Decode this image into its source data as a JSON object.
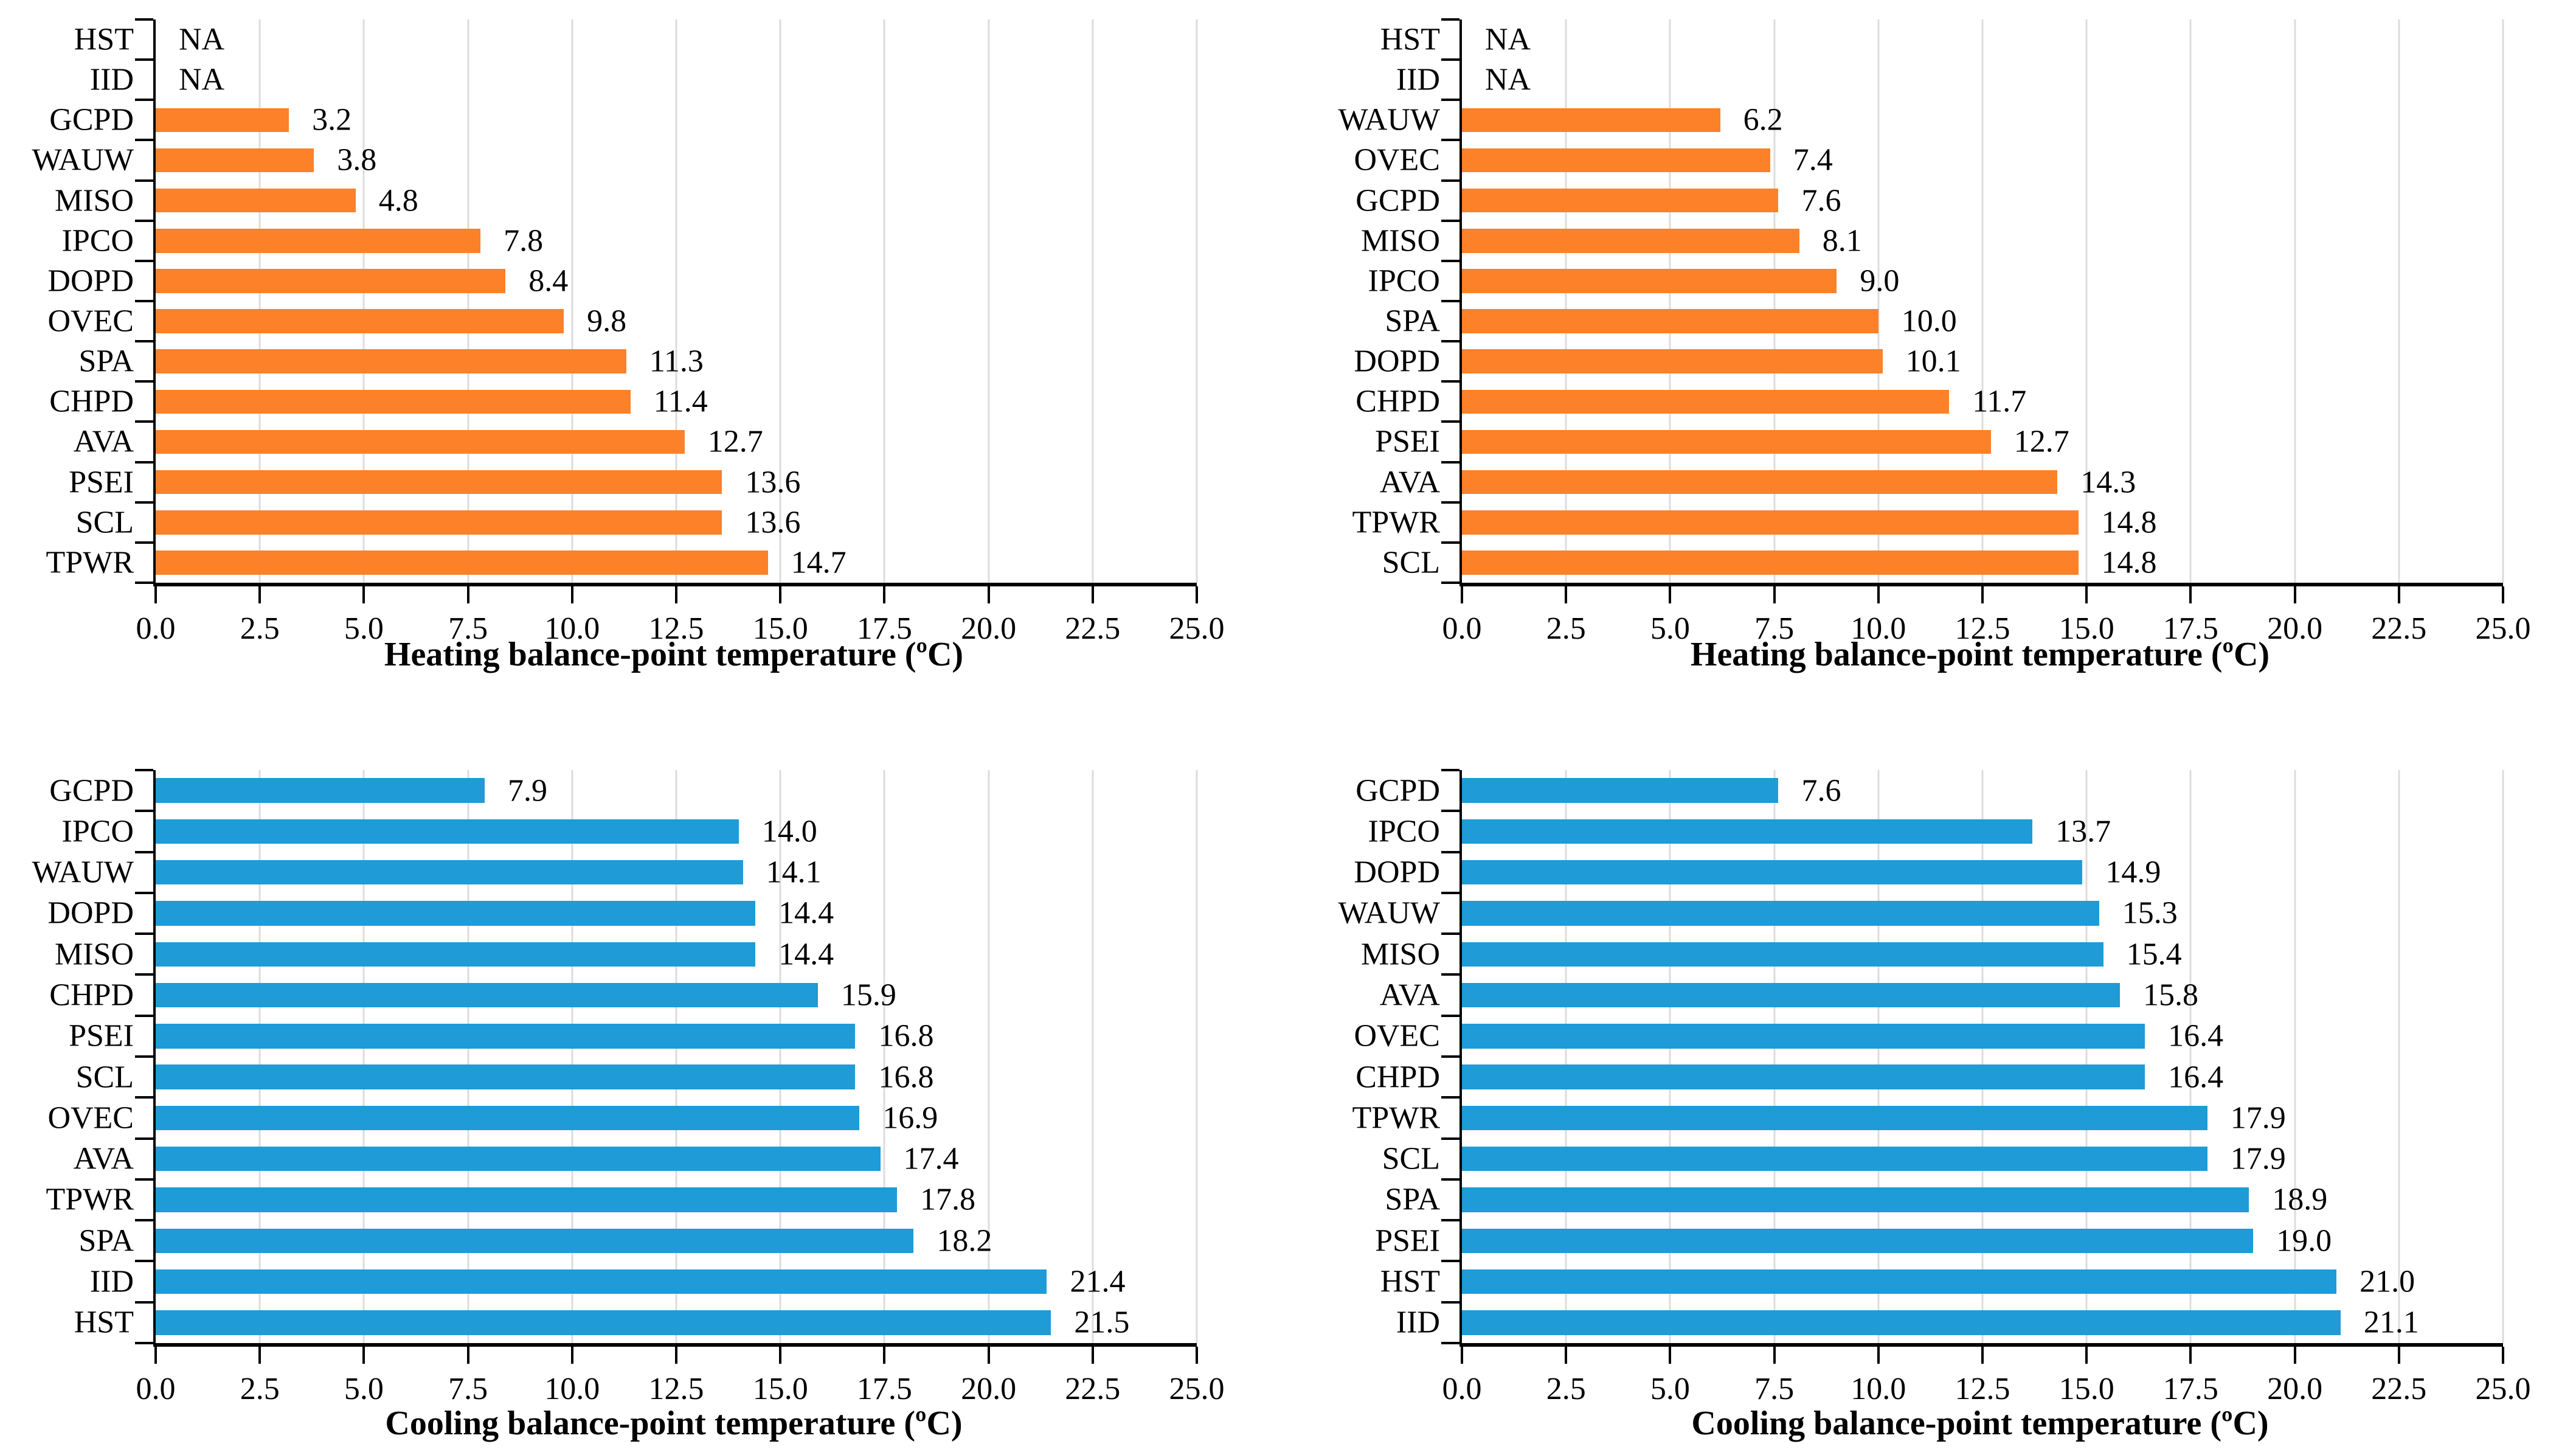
{
  "axis": {
    "min": 0,
    "max": 25,
    "step": 2.5,
    "tick_labels": [
      "0.0",
      "2.5",
      "5.0",
      "7.5",
      "10.0",
      "12.5",
      "15.0",
      "17.5",
      "20.0",
      "22.5",
      "25.0"
    ],
    "grid": "vertical"
  },
  "colors": {
    "heating": "#FC8129",
    "cooling": "#1F9BD7",
    "gridline": "#DCDCDC",
    "axis": "#000000"
  },
  "na_label": "NA",
  "chart_data": [
    {
      "id": "heating-left",
      "type": "bar",
      "orientation": "horizontal",
      "color_key": "heating",
      "xlabel": "Heating balance-point temperature (ºC)",
      "xlim": [
        0,
        25
      ],
      "categories": [
        "HST",
        "IID",
        "GCPD",
        "WAUW",
        "MISO",
        "IPCO",
        "DOPD",
        "OVEC",
        "SPA",
        "CHPD",
        "AVA",
        "PSEI",
        "SCL",
        "TPWR"
      ],
      "values": [
        null,
        null,
        3.2,
        3.8,
        4.8,
        7.8,
        8.4,
        9.8,
        11.3,
        11.4,
        12.7,
        13.6,
        13.6,
        14.7
      ],
      "labels": [
        "NA",
        "NA",
        "3.2",
        "3.8",
        "4.8",
        "7.8",
        "8.4",
        "9.8",
        "11.3",
        "11.4",
        "12.7",
        "13.6",
        "13.6",
        "14.7"
      ]
    },
    {
      "id": "heating-right",
      "type": "bar",
      "orientation": "horizontal",
      "color_key": "heating",
      "xlabel": "Heating balance-point temperature (ºC)",
      "xlim": [
        0,
        25
      ],
      "categories": [
        "HST",
        "IID",
        "WAUW",
        "OVEC",
        "GCPD",
        "MISO",
        "IPCO",
        "SPA",
        "DOPD",
        "CHPD",
        "PSEI",
        "AVA",
        "TPWR",
        "SCL"
      ],
      "values": [
        null,
        null,
        6.2,
        7.4,
        7.6,
        8.1,
        9.0,
        10.0,
        10.1,
        11.7,
        12.7,
        14.3,
        14.8,
        14.8
      ],
      "labels": [
        "NA",
        "NA",
        "6.2",
        "7.4",
        "7.6",
        "8.1",
        "9.0",
        "10.0",
        "10.1",
        "11.7",
        "12.7",
        "14.3",
        "14.8",
        "14.8"
      ]
    },
    {
      "id": "cooling-left",
      "type": "bar",
      "orientation": "horizontal",
      "color_key": "cooling",
      "xlabel": "Cooling balance-point temperature (ºC)",
      "xlim": [
        0,
        25
      ],
      "categories": [
        "GCPD",
        "IPCO",
        "WAUW",
        "DOPD",
        "MISO",
        "CHPD",
        "PSEI",
        "SCL",
        "OVEC",
        "AVA",
        "TPWR",
        "SPA",
        "IID",
        "HST"
      ],
      "values": [
        7.9,
        14.0,
        14.1,
        14.4,
        14.4,
        15.9,
        16.8,
        16.8,
        16.9,
        17.4,
        17.8,
        18.2,
        21.4,
        21.5
      ],
      "labels": [
        "7.9",
        "14.0",
        "14.1",
        "14.4",
        "14.4",
        "15.9",
        "16.8",
        "16.8",
        "16.9",
        "17.4",
        "17.8",
        "18.2",
        "21.4",
        "21.5"
      ]
    },
    {
      "id": "cooling-right",
      "type": "bar",
      "orientation": "horizontal",
      "color_key": "cooling",
      "xlabel": "Cooling balance-point temperature (ºC)",
      "xlim": [
        0,
        25
      ],
      "categories": [
        "GCPD",
        "IPCO",
        "DOPD",
        "WAUW",
        "MISO",
        "AVA",
        "OVEC",
        "CHPD",
        "TPWR",
        "SCL",
        "SPA",
        "PSEI",
        "HST",
        "IID"
      ],
      "values": [
        7.6,
        13.7,
        14.9,
        15.3,
        15.4,
        15.8,
        16.4,
        16.4,
        17.9,
        17.9,
        18.9,
        19.0,
        21.0,
        21.1
      ],
      "labels": [
        "7.6",
        "13.7",
        "14.9",
        "15.3",
        "15.4",
        "15.8",
        "16.4",
        "16.4",
        "17.9",
        "17.9",
        "18.9",
        "19.0",
        "21.0",
        "21.1"
      ]
    }
  ]
}
